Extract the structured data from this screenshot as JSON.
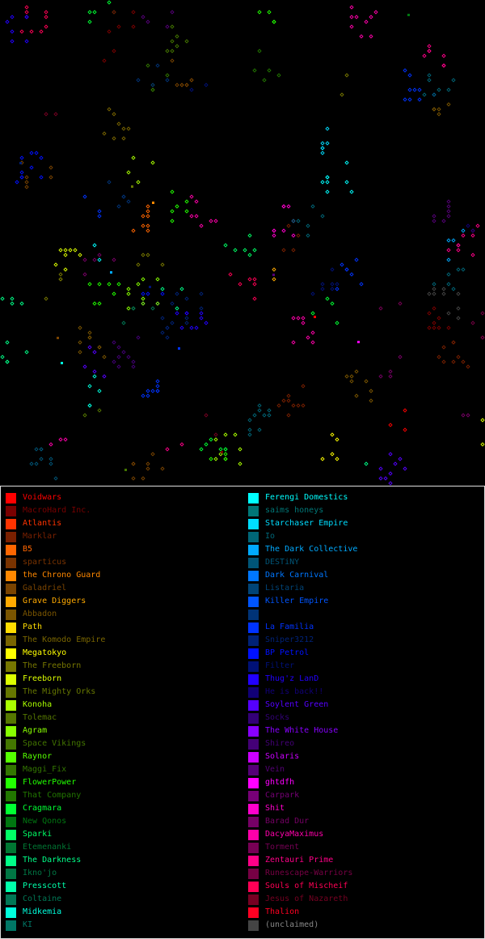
{
  "legend": {
    "left": [
      {
        "label": "Voidwars",
        "color": "#ff0000",
        "swatch": "#ff0000"
      },
      {
        "label": "MacroHard Inc.",
        "color": "#7a0000",
        "swatch": "#7a0000"
      },
      {
        "label": "Atlantis",
        "color": "#ff3300",
        "swatch": "#ff3300"
      },
      {
        "label": "Marklar",
        "color": "#7a2000",
        "swatch": "#7a2000"
      },
      {
        "label": "B5",
        "color": "#ff6600",
        "swatch": "#ff6600"
      },
      {
        "label": "sparticus",
        "color": "#7a3300",
        "swatch": "#7a3300"
      },
      {
        "label": "the Chrono Guard",
        "color": "#ff8800",
        "swatch": "#ff8800"
      },
      {
        "label": "Galadriel",
        "color": "#7a4400",
        "swatch": "#7a4400"
      },
      {
        "label": "Grave Diggers",
        "color": "#ffaa00",
        "swatch": "#ffaa00"
      },
      {
        "label": "Abbadon",
        "color": "#7a5500",
        "swatch": "#7a5500"
      },
      {
        "label": "Path",
        "color": "#ffdd00",
        "swatch": "#ffdd00"
      },
      {
        "label": "The Komodo Empire",
        "color": "#7a6600",
        "swatch": "#7a6600"
      },
      {
        "label": "Megatokyo",
        "color": "#ffff00",
        "swatch": "#ffff00"
      },
      {
        "label": "The Freeborn",
        "color": "#777700",
        "swatch": "#777700"
      },
      {
        "label": "Freeborn",
        "color": "#ddff00",
        "swatch": "#ddff00"
      },
      {
        "label": "The Mighty Orks",
        "color": "#667700",
        "swatch": "#667700"
      },
      {
        "label": "Konoha",
        "color": "#aaff00",
        "swatch": "#aaff00"
      },
      {
        "label": "Tolemac",
        "color": "#557700",
        "swatch": "#557700"
      },
      {
        "label": "Agram",
        "color": "#88ff00",
        "swatch": "#88ff00"
      },
      {
        "label": "Space Vikings",
        "color": "#447700",
        "swatch": "#447700"
      },
      {
        "label": "Raynor",
        "color": "#55ff00",
        "swatch": "#55ff00"
      },
      {
        "label": "Maggi_Fix",
        "color": "#337700",
        "swatch": "#337700"
      },
      {
        "label": "FlowerPower",
        "color": "#22ff00",
        "swatch": "#22ff00"
      },
      {
        "label": "That Company",
        "color": "#227700",
        "swatch": "#227700"
      },
      {
        "label": "Cragmara",
        "color": "#00ff33",
        "swatch": "#00ff33"
      },
      {
        "label": "New Qonos",
        "color": "#007711",
        "swatch": "#007711"
      },
      {
        "label": "Sparki",
        "color": "#00ff66",
        "swatch": "#00ff66"
      },
      {
        "label": "Etemenanki",
        "color": "#007733",
        "swatch": "#007733"
      },
      {
        "label": "The Darkness",
        "color": "#00ff88",
        "swatch": "#00ff88"
      },
      {
        "label": "Ikno'jo",
        "color": "#007744",
        "swatch": "#007744"
      },
      {
        "label": "Presscott",
        "color": "#00ffaa",
        "swatch": "#00ffaa"
      },
      {
        "label": "Coltaine",
        "color": "#007755",
        "swatch": "#007755"
      },
      {
        "label": "Midkemia",
        "color": "#00ffdd",
        "swatch": "#00ffdd"
      },
      {
        "label": "KI",
        "color": "#007766",
        "swatch": "#007766"
      }
    ],
    "right": [
      {
        "label": "Ferengi Domestics",
        "color": "#00ffff",
        "swatch": "#00ffff"
      },
      {
        "label": "saims honeys",
        "color": "#007777",
        "swatch": "#007777"
      },
      {
        "label": "Starchaser Empire",
        "color": "#00ddff",
        "swatch": "#00ddff"
      },
      {
        "label": "Io",
        "color": "#006677",
        "swatch": "#006677"
      },
      {
        "label": "The Dark Collective",
        "color": "#00aaff",
        "swatch": "#00aaff"
      },
      {
        "label": "DESTiNY",
        "color": "#005577",
        "swatch": "#005577"
      },
      {
        "label": "Dark Carnival",
        "color": "#0077ff",
        "swatch": "#0077ff"
      },
      {
        "label": "Listaria",
        "color": "#004477",
        "swatch": "#004477"
      },
      {
        "label": "Killer Empire",
        "color": "#0055ff",
        "swatch": "#0055ff"
      },
      {
        "label": "",
        "color": "#003377",
        "swatch": "#003377"
      },
      {
        "label": "La Familia",
        "color": "#0033ff",
        "swatch": "#0033ff"
      },
      {
        "label": "Sniper3212",
        "color": "#002277",
        "swatch": "#002277"
      },
      {
        "label": "BP Petrol",
        "color": "#0011ff",
        "swatch": "#0011ff"
      },
      {
        "label": "Filter",
        "color": "#001177",
        "swatch": "#001177"
      },
      {
        "label": "Thug'z LanD",
        "color": "#2200ff",
        "swatch": "#2200ff"
      },
      {
        "label": "He is back!!",
        "color": "#110077",
        "swatch": "#110077"
      },
      {
        "label": "Soylent Green",
        "color": "#5500ff",
        "swatch": "#5500ff"
      },
      {
        "label": "Socks",
        "color": "#330077",
        "swatch": "#330077"
      },
      {
        "label": "The White House",
        "color": "#8800ff",
        "swatch": "#8800ff"
      },
      {
        "label": "Shireo",
        "color": "#440077",
        "swatch": "#440077"
      },
      {
        "label": "Solaris",
        "color": "#cc00ff",
        "swatch": "#cc00ff"
      },
      {
        "label": "Vein",
        "color": "#550077",
        "swatch": "#550077"
      },
      {
        "label": "ghtdfh",
        "color": "#ff00ff",
        "swatch": "#ff00ff"
      },
      {
        "label": "Carpark",
        "color": "#770077",
        "swatch": "#770077"
      },
      {
        "label": "Shit",
        "color": "#ff00cc",
        "swatch": "#ff00cc"
      },
      {
        "label": "Barad Dur",
        "color": "#770066",
        "swatch": "#770066"
      },
      {
        "label": "DacyaMaximus",
        "color": "#ff00aa",
        "swatch": "#ff00aa"
      },
      {
        "label": "Torment",
        "color": "#770055",
        "swatch": "#770055"
      },
      {
        "label": "Zentauri Prime",
        "color": "#ff0088",
        "swatch": "#ff0088"
      },
      {
        "label": "Runescape-Warriors",
        "color": "#770044",
        "swatch": "#770044"
      },
      {
        "label": "Souls of Mischeif",
        "color": "#ff0055",
        "swatch": "#ff0055"
      },
      {
        "label": "Jesus of Nazareth",
        "color": "#770022",
        "swatch": "#770022"
      },
      {
        "label": "Thalion",
        "color": "#ff0022",
        "swatch": "#ff0022"
      },
      {
        "label": "(unclaimed)",
        "color": "#888888",
        "swatch": "#444444"
      }
    ]
  }
}
